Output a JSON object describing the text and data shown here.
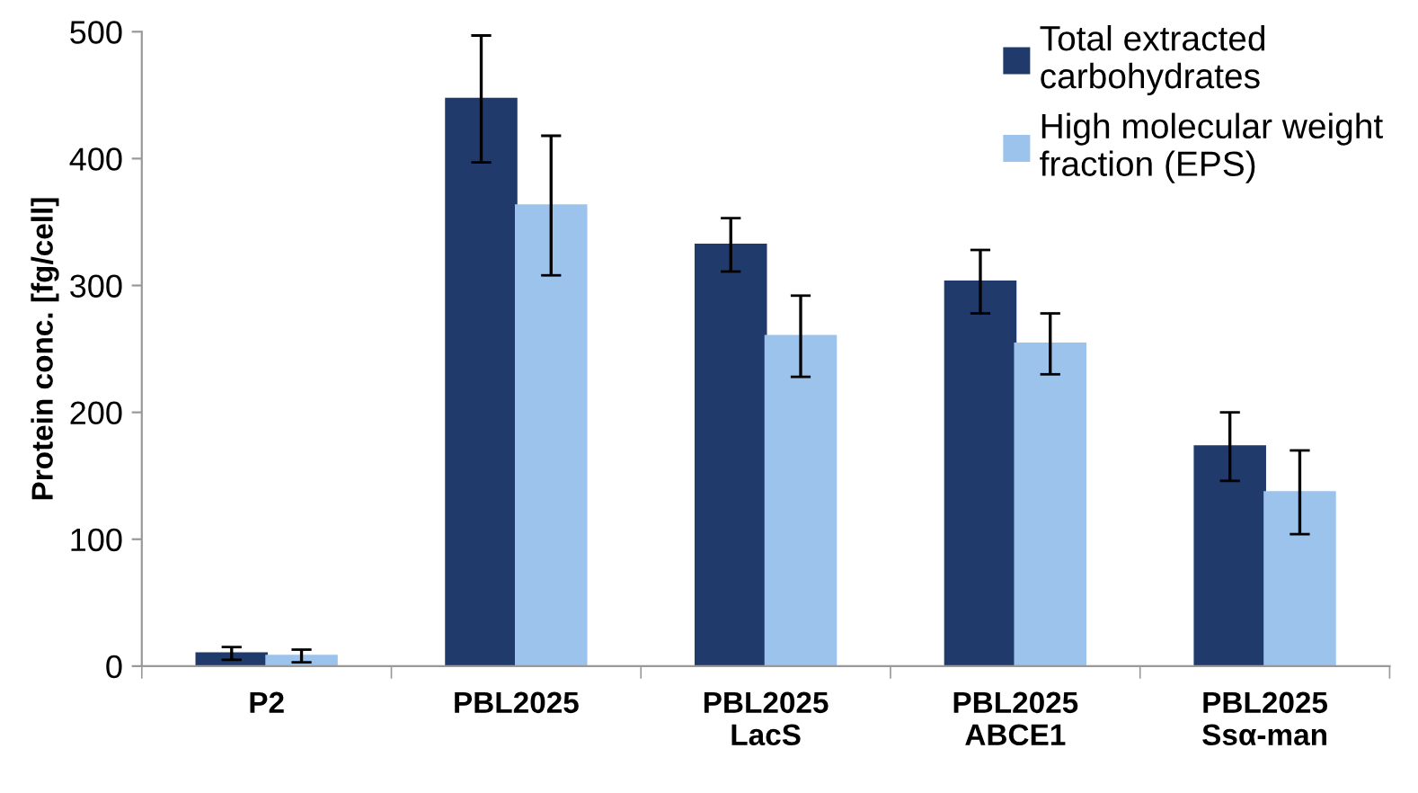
{
  "chart_data": {
    "type": "bar",
    "ylabel": "Protein conc. [fg/cell]",
    "categories": [
      "P2",
      "PBL2025",
      "PBL2025\nLacS",
      "PBL2025\nABCE1",
      "PBL2025\nSsα-man"
    ],
    "series": [
      {
        "name": "Total extracted\ncarbohydrates",
        "color": "#1f3a6b",
        "values": [
          10,
          447,
          332,
          303,
          173
        ],
        "errors": [
          5,
          50,
          21,
          25,
          27
        ]
      },
      {
        "name": "High molecular weight\nfraction (EPS)",
        "color": "#9cc3ec",
        "values": [
          8,
          363,
          260,
          254,
          137
        ],
        "errors": [
          5,
          55,
          32,
          24,
          33
        ]
      }
    ],
    "ylim": [
      0,
      500
    ],
    "yticks": [
      0,
      100,
      200,
      300,
      400,
      500
    ],
    "grid": false,
    "legend": "top right"
  }
}
